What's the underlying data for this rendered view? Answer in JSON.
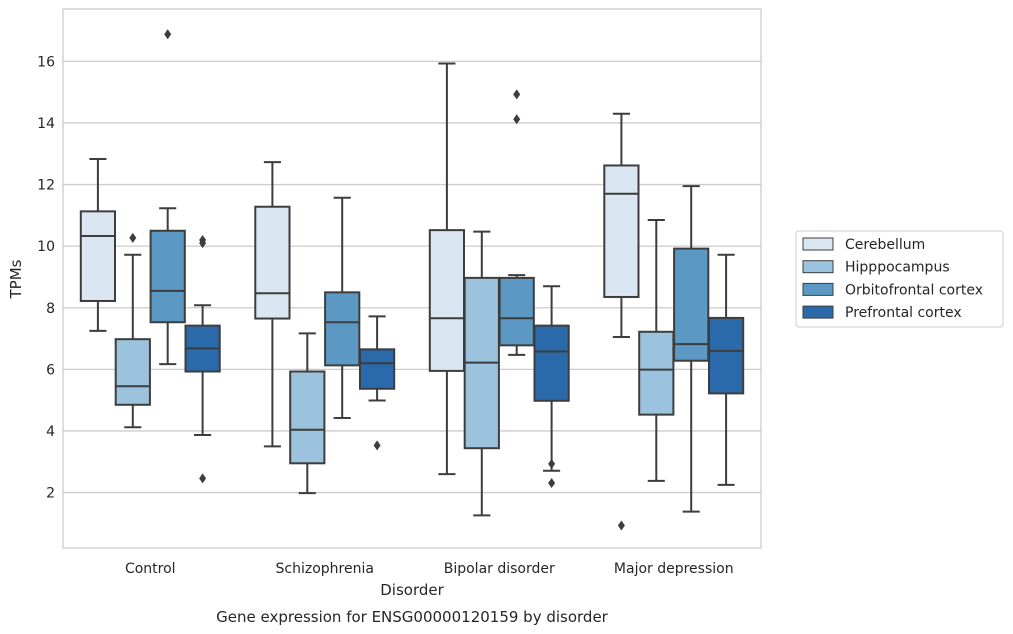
{
  "caption": "Gene expression for ENSG00000120159 by disorder",
  "chart_data": {
    "type": "box",
    "title": "",
    "xlabel": "Disorder",
    "ylabel": "TPMs",
    "ylim": [
      0.2,
      17.7
    ],
    "yticks": [
      2,
      4,
      6,
      8,
      10,
      12,
      14,
      16
    ],
    "grid": "horizontal",
    "legend_position": "right",
    "categories": [
      "Control",
      "Schizophrenia",
      "Bipolar disorder",
      "Major depression"
    ],
    "series": [
      {
        "name": "Cerebellum",
        "color": "#dae7f3",
        "boxes": [
          {
            "whislo": 7.25,
            "q1": 8.22,
            "med": 10.33,
            "q3": 11.13,
            "whishi": 12.83,
            "fliers": []
          },
          {
            "whislo": 3.5,
            "q1": 7.65,
            "med": 8.47,
            "q3": 11.28,
            "whishi": 12.73,
            "fliers": []
          },
          {
            "whislo": 2.6,
            "q1": 5.95,
            "med": 7.66,
            "q3": 10.52,
            "whishi": 15.93,
            "fliers": []
          },
          {
            "whislo": 7.05,
            "q1": 8.35,
            "med": 11.7,
            "q3": 12.62,
            "whishi": 14.3,
            "fliers": [
              0.93
            ]
          }
        ]
      },
      {
        "name": "Hipppocampus",
        "color": "#9cc3dd",
        "boxes": [
          {
            "whislo": 4.12,
            "q1": 4.85,
            "med": 5.45,
            "q3": 6.98,
            "whishi": 9.72,
            "fliers": [
              10.27
            ]
          },
          {
            "whislo": 1.98,
            "q1": 2.95,
            "med": 4.04,
            "q3": 5.93,
            "whishi": 7.17,
            "fliers": []
          },
          {
            "whislo": 1.26,
            "q1": 3.44,
            "med": 6.22,
            "q3": 8.97,
            "whishi": 10.47,
            "fliers": []
          },
          {
            "whislo": 2.38,
            "q1": 4.53,
            "med": 5.99,
            "q3": 7.22,
            "whishi": 10.85,
            "fliers": []
          }
        ]
      },
      {
        "name": "Orbitofrontal cortex",
        "color": "#5b99c4",
        "boxes": [
          {
            "whislo": 6.17,
            "q1": 7.53,
            "med": 8.55,
            "q3": 10.5,
            "whishi": 11.23,
            "fliers": [
              16.88
            ]
          },
          {
            "whislo": 4.42,
            "q1": 6.13,
            "med": 7.53,
            "q3": 8.5,
            "whishi": 11.57,
            "fliers": []
          },
          {
            "whislo": 6.47,
            "q1": 6.78,
            "med": 7.66,
            "q3": 8.97,
            "whishi": 9.06,
            "fliers": [
              14.93,
              14.12
            ]
          },
          {
            "whislo": 1.38,
            "q1": 6.28,
            "med": 6.82,
            "q3": 9.92,
            "whishi": 11.95,
            "fliers": []
          }
        ]
      },
      {
        "name": "Prefrontal cortex",
        "color": "#2a6aaa",
        "boxes": [
          {
            "whislo": 3.87,
            "q1": 5.93,
            "med": 6.68,
            "q3": 7.42,
            "whishi": 8.08,
            "fliers": [
              10.2,
              10.1,
              2.46
            ]
          },
          {
            "whislo": 4.99,
            "q1": 5.37,
            "med": 6.2,
            "q3": 6.65,
            "whishi": 7.72,
            "fliers": [
              3.53
            ]
          },
          {
            "whislo": 2.71,
            "q1": 4.98,
            "med": 6.58,
            "q3": 7.42,
            "whishi": 8.7,
            "fliers": [
              2.93,
              2.31
            ]
          },
          {
            "whislo": 2.25,
            "q1": 5.22,
            "med": 6.6,
            "q3": 7.67,
            "whishi": 9.72,
            "fliers": []
          }
        ]
      }
    ]
  }
}
